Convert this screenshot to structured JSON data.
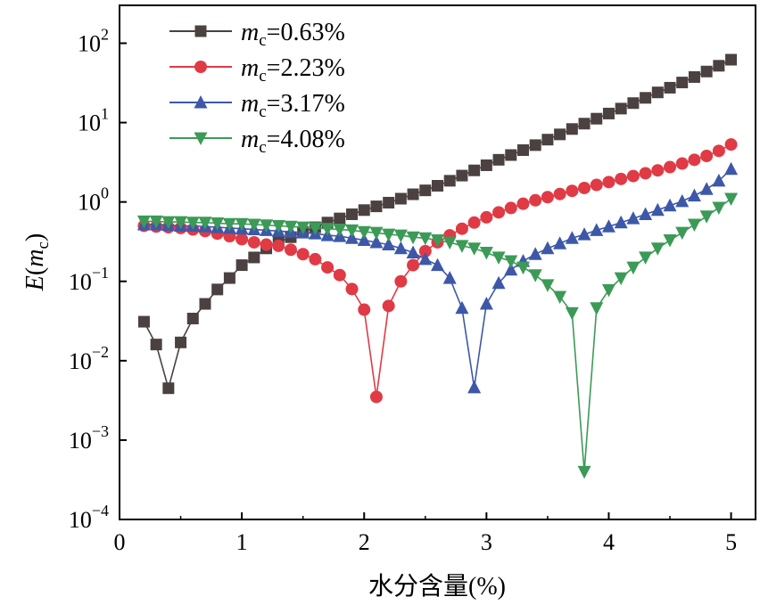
{
  "chart_data": {
    "type": "line",
    "y_scale": "log",
    "xlabel": "水分含量(%)",
    "ylabel": {
      "main": "E",
      "paren_open": "(",
      "var": "m",
      "sub": "c",
      "paren_close": ")"
    },
    "xlim": [
      0,
      5.2
    ],
    "ylim": [
      0.0001,
      300
    ],
    "x_ticks": [
      {
        "value": 0,
        "label": "0"
      },
      {
        "value": 1,
        "label": "1"
      },
      {
        "value": 2,
        "label": "2"
      },
      {
        "value": 3,
        "label": "3"
      },
      {
        "value": 4,
        "label": "4"
      },
      {
        "value": 5,
        "label": "5"
      }
    ],
    "y_ticks": [
      {
        "value": 0.0001,
        "base": "10",
        "exp": "−4"
      },
      {
        "value": 0.001,
        "base": "10",
        "exp": "−3"
      },
      {
        "value": 0.01,
        "base": "10",
        "exp": "−2"
      },
      {
        "value": 0.1,
        "base": "10",
        "exp": "−1"
      },
      {
        "value": 1,
        "base": "10",
        "exp": "0"
      },
      {
        "value": 10,
        "base": "10",
        "exp": "1"
      },
      {
        "value": 100,
        "base": "10",
        "exp": "2"
      }
    ],
    "legend_position": "top-left",
    "series": [
      {
        "name": "mc=0.63%",
        "label_var": "m",
        "label_sub": "c",
        "label_rest": "=0.63%",
        "color": "#4a4140",
        "marker": "square",
        "x": [
          0.2,
          0.3,
          0.4,
          0.5,
          0.6,
          0.7,
          0.8,
          0.9,
          1.0,
          1.1,
          1.2,
          1.3,
          1.4,
          1.5,
          1.6,
          1.7,
          1.8,
          1.9,
          2.0,
          2.1,
          2.2,
          2.3,
          2.4,
          2.5,
          2.6,
          2.7,
          2.8,
          2.9,
          3.0,
          3.1,
          3.2,
          3.3,
          3.4,
          3.5,
          3.6,
          3.7,
          3.8,
          3.9,
          4.0,
          4.1,
          4.2,
          4.3,
          4.4,
          4.5,
          4.6,
          4.7,
          4.8,
          4.9,
          5.0
        ],
        "y": [
          0.031,
          0.016,
          0.0045,
          0.017,
          0.034,
          0.052,
          0.079,
          0.11,
          0.16,
          0.2,
          0.26,
          0.31,
          0.36,
          0.42,
          0.48,
          0.55,
          0.62,
          0.7,
          0.79,
          0.88,
          0.98,
          1.1,
          1.25,
          1.4,
          1.6,
          1.85,
          2.15,
          2.5,
          2.9,
          3.4,
          3.9,
          4.5,
          5.2,
          6.1,
          7.1,
          8.3,
          9.7,
          11.2,
          13,
          15,
          17.6,
          20.5,
          24,
          27.5,
          32,
          37.5,
          44,
          52,
          62
        ]
      },
      {
        "name": "mc=2.23%",
        "label_var": "m",
        "label_sub": "c",
        "label_rest": "=2.23%",
        "color": "#e03a45",
        "marker": "circle",
        "x": [
          0.2,
          0.3,
          0.4,
          0.5,
          0.6,
          0.7,
          0.8,
          0.9,
          1.0,
          1.1,
          1.2,
          1.3,
          1.4,
          1.5,
          1.6,
          1.7,
          1.8,
          1.9,
          2.0,
          2.1,
          2.2,
          2.3,
          2.4,
          2.5,
          2.6,
          2.7,
          2.8,
          2.9,
          3.0,
          3.1,
          3.2,
          3.3,
          3.4,
          3.5,
          3.6,
          3.7,
          3.8,
          3.9,
          4.0,
          4.1,
          4.2,
          4.3,
          4.4,
          4.5,
          4.6,
          4.7,
          4.8,
          4.9,
          5.0
        ],
        "y": [
          0.5,
          0.49,
          0.48,
          0.47,
          0.45,
          0.43,
          0.4,
          0.37,
          0.34,
          0.31,
          0.29,
          0.28,
          0.25,
          0.22,
          0.19,
          0.15,
          0.12,
          0.08,
          0.044,
          0.0035,
          0.049,
          0.1,
          0.16,
          0.24,
          0.31,
          0.38,
          0.46,
          0.55,
          0.64,
          0.74,
          0.84,
          0.95,
          1.05,
          1.15,
          1.26,
          1.38,
          1.5,
          1.64,
          1.78,
          1.95,
          2.12,
          2.3,
          2.5,
          2.75,
          3.05,
          3.4,
          3.8,
          4.4,
          5.3
        ]
      },
      {
        "name": "mc=3.17%",
        "label_var": "m",
        "label_sub": "c",
        "label_rest": "=3.17%",
        "color": "#3d58a8",
        "marker": "triangle-up",
        "x": [
          0.2,
          0.3,
          0.4,
          0.5,
          0.6,
          0.7,
          0.8,
          0.9,
          1.0,
          1.1,
          1.2,
          1.3,
          1.4,
          1.5,
          1.6,
          1.7,
          1.8,
          1.9,
          2.0,
          2.1,
          2.2,
          2.3,
          2.4,
          2.5,
          2.6,
          2.7,
          2.8,
          2.9,
          3.0,
          3.1,
          3.2,
          3.3,
          3.4,
          3.5,
          3.6,
          3.7,
          3.8,
          3.9,
          4.0,
          4.1,
          4.2,
          4.3,
          4.4,
          4.5,
          4.6,
          4.7,
          4.8,
          4.9,
          5.0
        ],
        "y": [
          0.52,
          0.52,
          0.51,
          0.5,
          0.5,
          0.49,
          0.48,
          0.47,
          0.46,
          0.45,
          0.44,
          0.43,
          0.42,
          0.41,
          0.4,
          0.38,
          0.37,
          0.35,
          0.33,
          0.31,
          0.29,
          0.26,
          0.23,
          0.19,
          0.16,
          0.11,
          0.046,
          0.0046,
          0.052,
          0.095,
          0.14,
          0.18,
          0.22,
          0.26,
          0.3,
          0.35,
          0.39,
          0.44,
          0.49,
          0.55,
          0.62,
          0.7,
          0.79,
          0.9,
          1.02,
          1.2,
          1.45,
          1.85,
          2.6
        ]
      },
      {
        "name": "mc=4.08%",
        "label_var": "m",
        "label_sub": "c",
        "label_rest": "=4.08%",
        "color": "#3c9a57",
        "marker": "triangle-down",
        "x": [
          0.2,
          0.3,
          0.4,
          0.5,
          0.6,
          0.7,
          0.8,
          0.9,
          1.0,
          1.1,
          1.2,
          1.3,
          1.4,
          1.5,
          1.6,
          1.7,
          1.8,
          1.9,
          2.0,
          2.1,
          2.2,
          2.3,
          2.4,
          2.5,
          2.6,
          2.7,
          2.8,
          2.9,
          3.0,
          3.1,
          3.2,
          3.3,
          3.4,
          3.5,
          3.6,
          3.7,
          3.8,
          3.9,
          4.0,
          4.1,
          4.2,
          4.3,
          4.4,
          4.5,
          4.6,
          4.7,
          4.8,
          4.9,
          5.0
        ],
        "y": [
          0.57,
          0.57,
          0.56,
          0.56,
          0.55,
          0.55,
          0.54,
          0.53,
          0.53,
          0.52,
          0.51,
          0.5,
          0.49,
          0.48,
          0.47,
          0.46,
          0.45,
          0.44,
          0.42,
          0.41,
          0.39,
          0.38,
          0.36,
          0.35,
          0.33,
          0.31,
          0.28,
          0.26,
          0.23,
          0.2,
          0.18,
          0.15,
          0.12,
          0.09,
          0.064,
          0.04,
          0.0004,
          0.046,
          0.078,
          0.11,
          0.15,
          0.2,
          0.26,
          0.33,
          0.41,
          0.52,
          0.66,
          0.85,
          1.1
        ]
      }
    ]
  }
}
